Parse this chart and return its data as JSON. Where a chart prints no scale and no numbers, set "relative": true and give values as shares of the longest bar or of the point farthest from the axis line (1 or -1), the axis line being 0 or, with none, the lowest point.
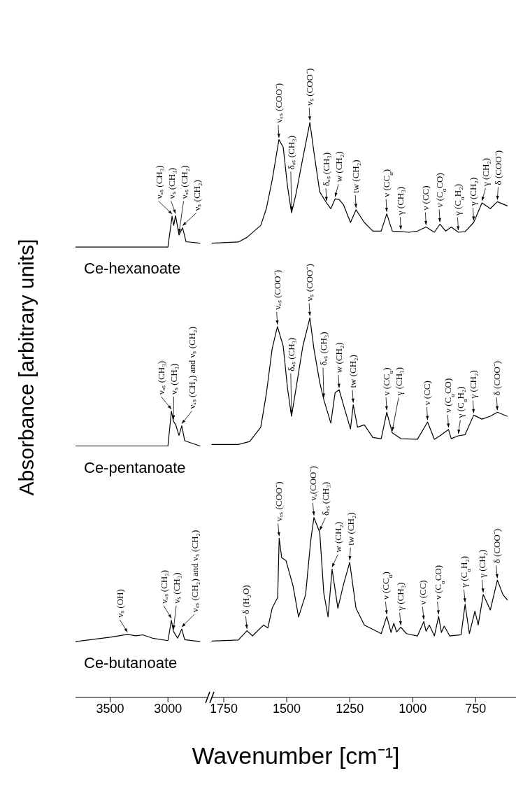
{
  "chart_data": [
    {
      "type": "line",
      "relative": true,
      "xlim": [
        3800,
        2650
      ],
      "xticks": [
        3500,
        3000
      ],
      "ylabel": "Absorbance [arbitrary units]",
      "series": [
        {
          "name": "Ce-hexanoate",
          "color": "#000000",
          "x": [
            3800,
            3000,
            2964,
            2950,
            2934,
            2904,
            2873,
            2843,
            2723
          ],
          "values": [
            0.935,
            0.935,
            0.999,
            0.98,
            1,
            0.96,
            0.975,
            0.946,
            0.943
          ]
        },
        {
          "name": "Ce-pentanoate",
          "color": "#000000",
          "x": [
            3800,
            3000,
            2970,
            2952,
            2934,
            2904,
            2880,
            2855,
            2723
          ],
          "values": [
            0.522,
            0.522,
            0.594,
            0.573,
            0.567,
            0.544,
            0.564,
            0.533,
            0.522
          ]
        },
        {
          "name": "Ce-butanoate",
          "color": "#000000",
          "x": [
            3800,
            3500,
            3350,
            3277,
            3217,
            3133,
            3000,
            2970,
            2952,
            2916,
            2880,
            2855,
            2723
          ],
          "values": [
            0.116,
            0.125,
            0.131,
            0.128,
            0.13,
            0.123,
            0.118,
            0.16,
            0.137,
            0.123,
            0.142,
            0.12,
            0.116
          ]
        }
      ],
      "annotations": [
        {
          "text": "νₐₛ (CH₃)",
          "x": 2964,
          "y": 0.999
        },
        {
          "text": "νₛ (CH₃)",
          "x": 2934,
          "y": 1
        },
        {
          "text": "νₐₛ (CH₂)",
          "x": 2904,
          "y": 0.96
        },
        {
          "text": "νₛ (CH₂)",
          "x": 2873,
          "y": 0.975
        },
        {
          "text": "νₐₛ (CH₃)",
          "x": 2970,
          "y": 0.594
        },
        {
          "text": "νₛ (CH₃)",
          "x": 2952,
          "y": 0.573
        },
        {
          "text": "νₐₛ (CH₂) and νₛ (CH₂)",
          "x": 2880,
          "y": 0.564
        },
        {
          "text": "νₛ (OH)",
          "x": 3350,
          "y": 0.131
        },
        {
          "text": "νₐₛ (CH₃)",
          "x": 2970,
          "y": 0.16
        },
        {
          "text": "νₛ (CH₃)",
          "x": 2952,
          "y": 0.137
        },
        {
          "text": "νₐₛ (CH₂) and νₛ (CH₂)",
          "x": 2880,
          "y": 0.142
        }
      ]
    },
    {
      "type": "line",
      "relative": true,
      "xlim": [
        1800,
        590
      ],
      "xticks": [
        1750,
        1500,
        1250,
        1000,
        750
      ],
      "xlabel": "Wavenumber [cm⁻¹]",
      "series": [
        {
          "color": "#000000",
          "x": [
            1797,
            1692,
            1658,
            1603,
            1581,
            1558,
            1531,
            1514,
            1497,
            1481,
            1464,
            1436,
            1408,
            1392,
            1369,
            1342,
            1325,
            1308,
            1292,
            1275,
            1247,
            1225,
            1192,
            1158,
            1125,
            1103,
            1081,
            1047,
            1014,
            981,
            947,
            914,
            892,
            869,
            847,
            819,
            792,
            758,
            725,
            692,
            664,
            625
          ],
          "values": [
            0.79,
            0.792,
            0.8,
            0.821,
            0.85,
            0.899,
            0.97,
            0.957,
            0.889,
            0.843,
            0.874,
            0.938,
            1,
            0.948,
            0.879,
            0.86,
            0.85,
            0.867,
            0.866,
            0.857,
            0.826,
            0.848,
            0.826,
            0.811,
            0.811,
            0.841,
            0.811,
            0.81,
            0.809,
            0.811,
            0.818,
            0.809,
            0.823,
            0.811,
            0.818,
            0.809,
            0.81,
            0.826,
            0.86,
            0.85,
            0.862,
            0.855
          ]
        },
        {
          "color": "#000000",
          "x": [
            1797,
            1692,
            1647,
            1603,
            1581,
            1558,
            1537,
            1514,
            1497,
            1481,
            1464,
            1436,
            1408,
            1392,
            1369,
            1353,
            1325,
            1308,
            1292,
            1275,
            1247,
            1236,
            1219,
            1192,
            1158,
            1125,
            1103,
            1081,
            1047,
            981,
            941,
            914,
            892,
            858,
            847,
            819,
            792,
            758,
            725,
            692,
            664,
            625
          ],
          "values": [
            0.44,
            0.44,
            0.445,
            0.47,
            0.528,
            0.606,
            0.645,
            0.611,
            0.538,
            0.489,
            0.535,
            0.611,
            0.66,
            0.606,
            0.548,
            0.518,
            0.477,
            0.53,
            0.535,
            0.509,
            0.467,
            0.509,
            0.47,
            0.474,
            0.452,
            0.45,
            0.496,
            0.46,
            0.45,
            0.449,
            0.479,
            0.449,
            0.455,
            0.466,
            0.45,
            0.455,
            0.457,
            0.491,
            0.484,
            0.489,
            0.496,
            0.489
          ]
        },
        {
          "color": "#000000",
          "x": [
            1797,
            1692,
            1658,
            1636,
            1592,
            1575,
            1558,
            1536,
            1530,
            1520,
            1503,
            1475,
            1453,
            1425,
            1405,
            1392,
            1369,
            1353,
            1336,
            1320,
            1297,
            1275,
            1250,
            1225,
            1192,
            1125,
            1103,
            1086,
            1075,
            1064,
            1047,
            1025,
            981,
            956,
            947,
            934,
            914,
            897,
            886,
            875,
            853,
            808,
            792,
            775,
            753,
            740,
            720,
            692,
            664,
            642,
            625
          ],
          "values": [
            0.098,
            0.1,
            0.116,
            0.107,
            0.126,
            0.121,
            0.155,
            0.174,
            0.277,
            0.243,
            0.238,
            0.194,
            0.14,
            0.179,
            0.272,
            0.313,
            0.287,
            0.182,
            0.14,
            0.223,
            0.155,
            0.196,
            0.235,
            0.155,
            0.126,
            0.111,
            0.141,
            0.113,
            0.129,
            0.114,
            0.122,
            0.111,
            0.107,
            0.132,
            0.115,
            0.126,
            0.107,
            0.141,
            0.113,
            0.124,
            0.107,
            0.109,
            0.162,
            0.111,
            0.15,
            0.126,
            0.179,
            0.152,
            0.204,
            0.179,
            0.17
          ]
        }
      ],
      "annotations": [
        {
          "text": "νₐₛ (COO⁻)",
          "x": 1531,
          "y": 0.97
        },
        {
          "text": "δₐₛ (CH₃)",
          "x": 1481,
          "y": 0.843
        },
        {
          "text": "νₛ (COO⁻)",
          "x": 1408,
          "y": 1
        },
        {
          "text": "δₐₛ (CH₃)",
          "x": 1342,
          "y": 0.86
        },
        {
          "text": "w (CH₂)",
          "x": 1308,
          "y": 0.867
        },
        {
          "text": "tw (CH₂)",
          "x": 1225,
          "y": 0.848
        },
        {
          "text": "ν (CC$_{α}$)",
          "x": 1103,
          "y": 0.841
        },
        {
          "text": "γ (CH₃)",
          "x": 1047,
          "y": 0.81
        },
        {
          "text": "ν (CC)",
          "x": 947,
          "y": 0.818
        },
        {
          "text": "ν (C$_{α}$CO)",
          "x": 892,
          "y": 0.823
        },
        {
          "text": "γ (C$_{α}$H₂)",
          "x": 819,
          "y": 0.809
        },
        {
          "text": "γ (CH₂)",
          "x": 758,
          "y": 0.826
        },
        {
          "text": "γ (CH₂)",
          "x": 725,
          "y": 0.86
        },
        {
          "text": "δ (COO⁻)",
          "x": 664,
          "y": 0.862
        },
        {
          "text": "νₐₛ (COO⁻)",
          "x": 1537,
          "y": 0.645
        },
        {
          "text": "δₐₛ (CH₃)",
          "x": 1481,
          "y": 0.489
        },
        {
          "text": "νₛ (COO⁻)",
          "x": 1408,
          "y": 0.66
        },
        {
          "text": "δₐₛ (CH₃)",
          "x": 1353,
          "y": 0.518
        },
        {
          "text": "w (CH₂)",
          "x": 1292,
          "y": 0.535
        },
        {
          "text": "tw (CH₂)",
          "x": 1236,
          "y": 0.509
        },
        {
          "text": "ν (CC$_{α}$)",
          "x": 1103,
          "y": 0.496
        },
        {
          "text": "γ (CH₃)",
          "x": 1081,
          "y": 0.46
        },
        {
          "text": "ν (CC)",
          "x": 941,
          "y": 0.479
        },
        {
          "text": "ν (C$_{α}$CO)",
          "x": 858,
          "y": 0.466
        },
        {
          "text": "γ (C$_{α}$H₂)",
          "x": 819,
          "y": 0.455
        },
        {
          "text": "γ (CH₂)",
          "x": 758,
          "y": 0.491
        },
        {
          "text": "δ (COO⁻)",
          "x": 664,
          "y": 0.496
        },
        {
          "text": "δ (H₂O)",
          "x": 1658,
          "y": 0.116
        },
        {
          "text": "νₐₛ (COO⁻)",
          "x": 1530,
          "y": 0.277
        },
        {
          "text": "νₐ(COO⁻)",
          "x": 1392,
          "y": 0.313
        },
        {
          "text": "δₐₛ (CH₃)",
          "x": 1369,
          "y": 0.287
        },
        {
          "text": "w (CH₂)",
          "x": 1320,
          "y": 0.223
        },
        {
          "text": "tw (CH₂)",
          "x": 1250,
          "y": 0.235
        },
        {
          "text": "ν (CC$_{α}$)",
          "x": 1103,
          "y": 0.141
        },
        {
          "text": "γ (CH₃)",
          "x": 1047,
          "y": 0.122
        },
        {
          "text": "ν (CC)",
          "x": 956,
          "y": 0.132
        },
        {
          "text": "ν (C$_{α}$CO)",
          "x": 897,
          "y": 0.141
        },
        {
          "text": "γ (C$_{α}$H₂)",
          "x": 792,
          "y": 0.162
        },
        {
          "text": "γ (CH₂)",
          "x": 720,
          "y": 0.179
        },
        {
          "text": "δ (COO⁻)",
          "x": 664,
          "y": 0.204
        }
      ]
    }
  ]
}
